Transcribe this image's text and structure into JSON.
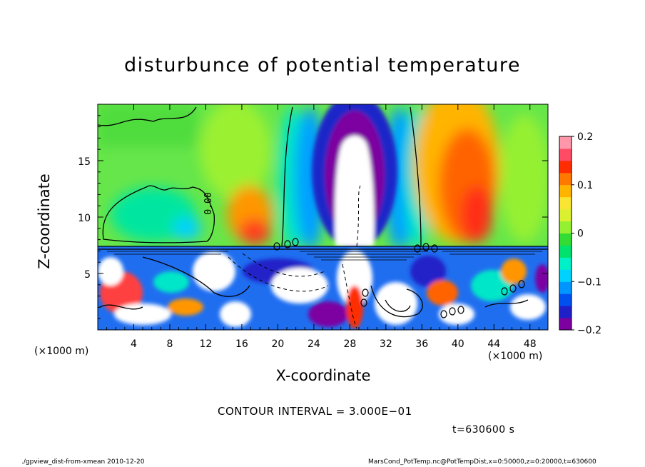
{
  "chart_data": {
    "type": "heatmap",
    "title": "disturbunce of potential temperature",
    "xlabel": "X-coordinate",
    "ylabel": "Z-coordinate",
    "x_unit_left": "(×1000 m)",
    "x_unit_right": "(×1000 m)",
    "xlim": [
      0,
      50
    ],
    "ylim": [
      0,
      20
    ],
    "x_ticks": [
      4,
      8,
      12,
      16,
      20,
      24,
      28,
      32,
      36,
      40,
      44,
      48
    ],
    "y_ticks": [
      5,
      10,
      15
    ],
    "colorbar": {
      "min": -0.2,
      "max": 0.2,
      "tick_values": [
        0.2,
        0.1,
        0,
        -0.1,
        -0.2
      ],
      "tick_labels": [
        "0.2",
        "0.1",
        "0",
        "−0.1",
        "−0.2"
      ],
      "colors": [
        "#7d00a0",
        "#2020c8",
        "#0050f0",
        "#0096ff",
        "#00d2ff",
        "#00f0c8",
        "#00e16e",
        "#32dc32",
        "#96f032",
        "#dcf032",
        "#fae632",
        "#ffb400",
        "#ff7800",
        "#ff2d00",
        "#ff4b64",
        "#ff96aa"
      ]
    },
    "contour_label": "0.00",
    "contour_interval": "CONTOUR INTERVAL = 3.000E−01",
    "time": "t=630600 s"
  },
  "footer": {
    "left": "./gpview_dist-from-xmean  2010-12-20",
    "right": "MarsCond_PotTemp.nc@PotTempDist,x=0:50000,z=0:20000,t=630600"
  }
}
